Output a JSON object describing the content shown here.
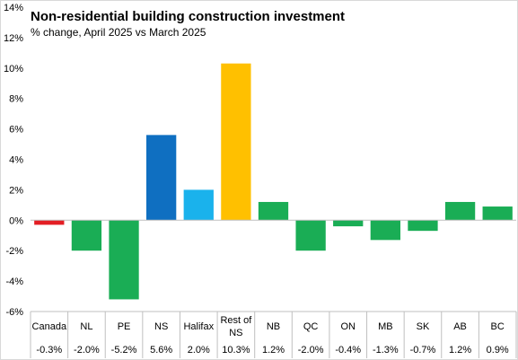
{
  "chart_data": {
    "type": "bar",
    "title": "Non-residential building construction investment",
    "subtitle": "% change, April 2025 vs March 2025",
    "categories": [
      [
        "Canada"
      ],
      [
        "NL"
      ],
      [
        "PE"
      ],
      [
        "NS"
      ],
      [
        "Halifax"
      ],
      [
        "Rest of",
        "NS"
      ],
      [
        "NB"
      ],
      [
        "QC"
      ],
      [
        "ON"
      ],
      [
        "MB"
      ],
      [
        "SK"
      ],
      [
        "AB"
      ],
      [
        "BC"
      ]
    ],
    "values": [
      -0.3,
      -2.0,
      -5.2,
      5.6,
      2.0,
      10.3,
      1.2,
      -2.0,
      -0.4,
      -1.3,
      -0.7,
      1.2,
      0.9
    ],
    "value_labels": [
      "-0.3%",
      "-2.0%",
      "-5.2%",
      "5.6%",
      "2.0%",
      "10.3%",
      "1.2%",
      "-2.0%",
      "-0.4%",
      "-1.3%",
      "-0.7%",
      "1.2%",
      "0.9%"
    ],
    "bar_colors": [
      "#e31e24",
      "#1aad55",
      "#1aad55",
      "#0f6fc1",
      "#1ab2ec",
      "#ffc000",
      "#1aad55",
      "#1aad55",
      "#1aad55",
      "#1aad55",
      "#1aad55",
      "#1aad55",
      "#1aad55"
    ],
    "ylim": [
      -6,
      14
    ],
    "yticks": [
      -6,
      -4,
      -2,
      0,
      2,
      4,
      6,
      8,
      10,
      12,
      14
    ],
    "ytick_labels": [
      "-6%",
      "-4%",
      "-2%",
      "0%",
      "2%",
      "4%",
      "6%",
      "8%",
      "10%",
      "12%",
      "14%"
    ],
    "grid": false,
    "legend": "none"
  }
}
